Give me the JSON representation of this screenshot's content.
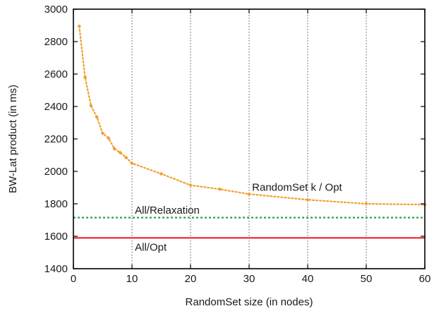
{
  "chart_data": {
    "type": "line",
    "xlabel": "RandomSet size (in nodes)",
    "ylabel": "BW-Lat product (in ms)",
    "xlim": [
      0,
      60
    ],
    "ylim": [
      1400,
      3000
    ],
    "xticks": [
      0,
      10,
      20,
      30,
      40,
      50,
      60
    ],
    "yticks": [
      1400,
      1600,
      1800,
      2000,
      2200,
      2400,
      2600,
      2800,
      3000
    ],
    "xgrid": true,
    "ygrid": false,
    "series": [
      {
        "name": "RandomSet k / Opt",
        "style": "dotted-with-markers",
        "color": "#f0a030",
        "x": [
          1,
          2,
          3,
          4,
          5,
          6,
          7,
          8,
          9,
          10,
          15,
          20,
          25,
          30,
          40,
          50,
          60
        ],
        "y": [
          2895,
          2580,
          2405,
          2335,
          2235,
          2205,
          2140,
          2115,
          2085,
          2050,
          1985,
          1915,
          1890,
          1860,
          1825,
          1800,
          1795
        ]
      },
      {
        "name": "All/Relaxation",
        "style": "dashed",
        "color": "#1f9e3a",
        "x": [
          0,
          60
        ],
        "y": [
          1715,
          1715
        ]
      },
      {
        "name": "All/Opt",
        "style": "solid",
        "color": "#e8232a",
        "x": [
          0,
          60
        ],
        "y": [
          1590,
          1590
        ]
      }
    ],
    "annotations": [
      {
        "text": "RandomSet k / Opt",
        "x": 30.5,
        "y": 1880
      },
      {
        "text": "All/Relaxation",
        "x": 10.5,
        "y": 1740
      },
      {
        "text": "All/Opt",
        "x": 10.5,
        "y": 1510
      }
    ]
  }
}
